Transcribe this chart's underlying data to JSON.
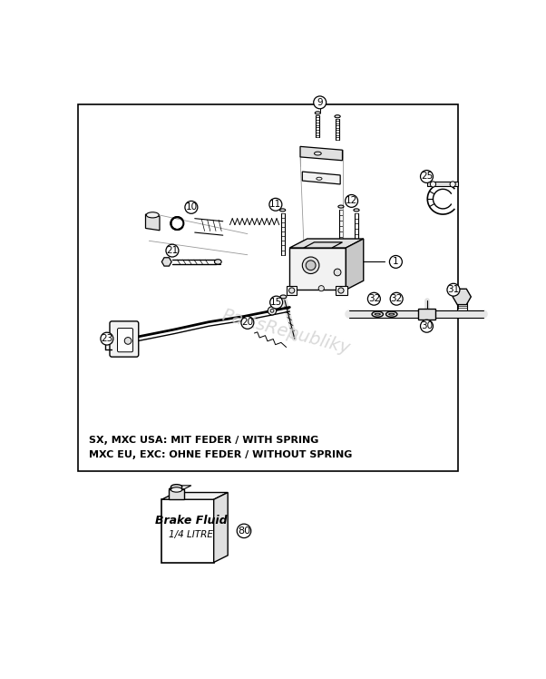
{
  "bg_color": "#ffffff",
  "note_text_1": "SX, MXC USA: MIT FEDER / WITH SPRING",
  "note_text_2": "MXC EU, EXC: OHNE FEDER / WITHOUT SPRING",
  "watermark": "PartsRepubliky",
  "brake_fluid_label1": "Brake Fluid",
  "brake_fluid_label2": "1/4 LITRE",
  "line_color": "#000000",
  "light_gray": "#cccccc",
  "mid_gray": "#999999",
  "fill_light": "#f2f2f2",
  "fill_mid": "#e0e0e0",
  "fill_dark": "#c8c8c8"
}
